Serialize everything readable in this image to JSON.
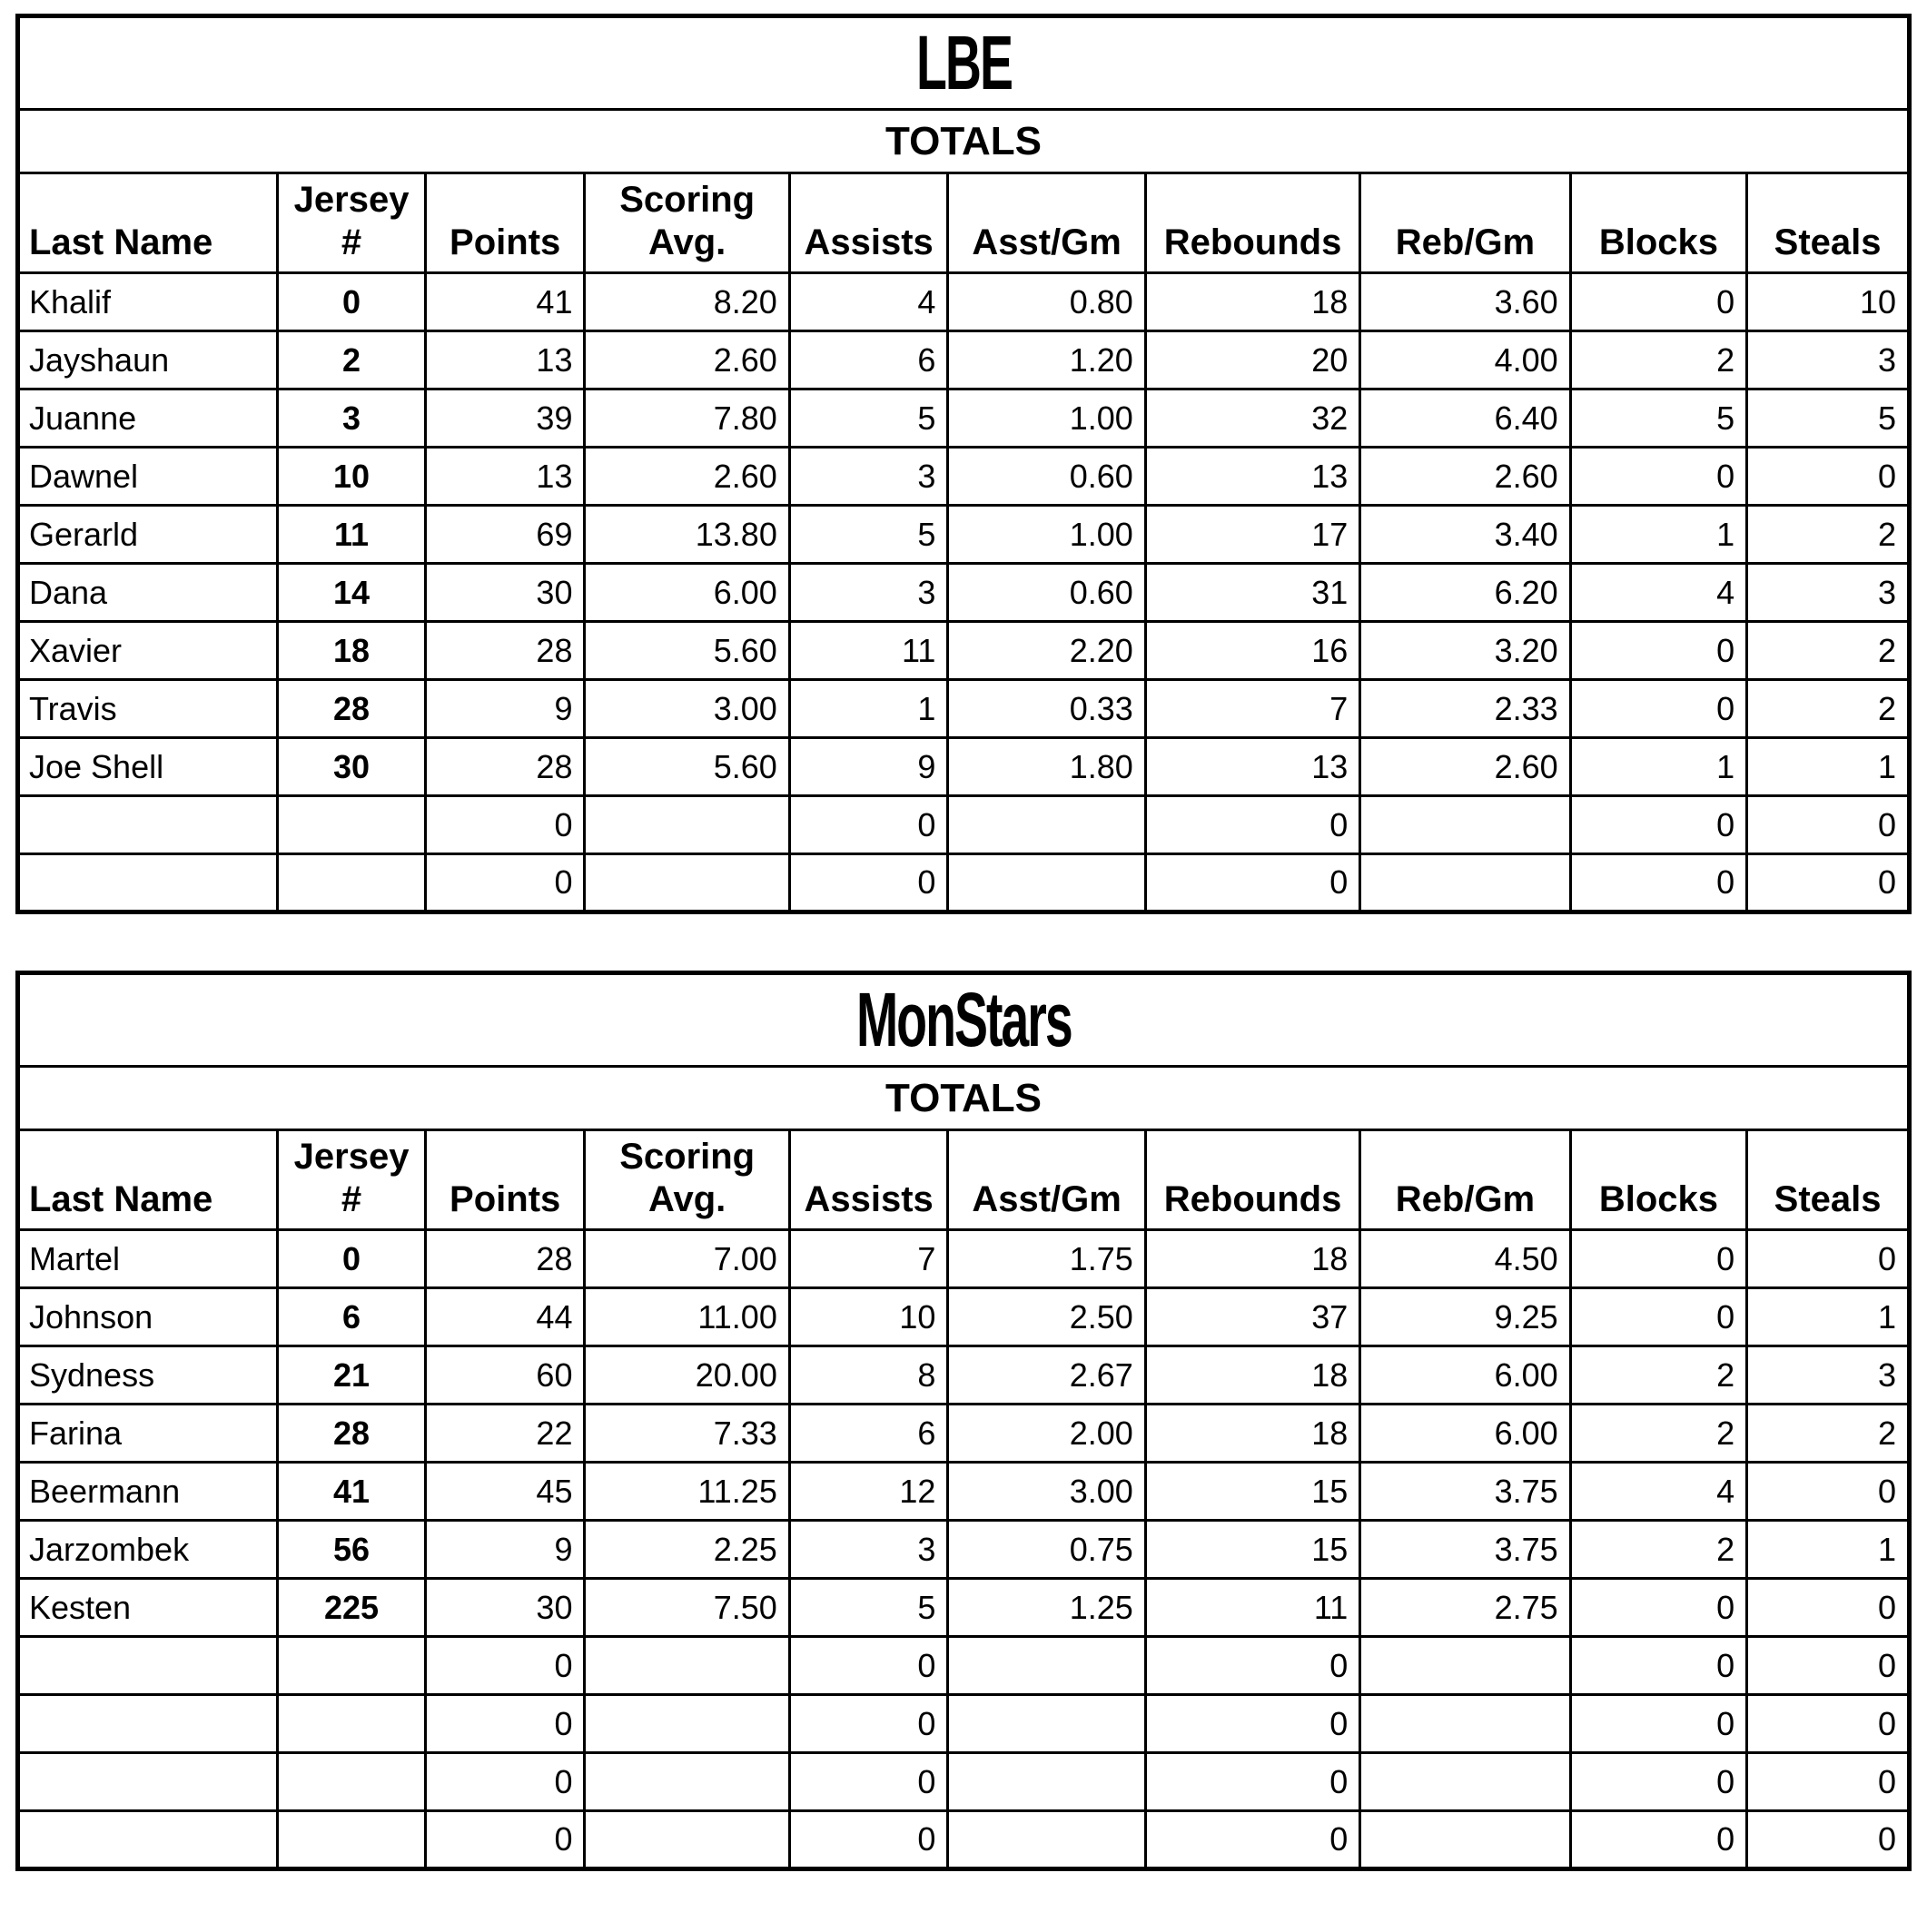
{
  "page": {
    "background_color": "#ffffff",
    "text_color": "#000000",
    "border_color": "#000000"
  },
  "columns": [
    "Last Name",
    "Jersey\n#",
    "Points",
    "Scoring\nAvg.",
    "Assists",
    "Asst/Gm",
    "Rebounds",
    "Reb/Gm",
    "Blocks",
    "Steals"
  ],
  "teams": [
    {
      "title": "LBE",
      "totals_label": "TOTALS",
      "rows": [
        {
          "last_name": "Khalif",
          "jersey": "0",
          "points": "41",
          "scoring_avg": "8.20",
          "assists": "4",
          "asst_gm": "0.80",
          "rebounds": "18",
          "reb_gm": "3.60",
          "blocks": "0",
          "steals": "10"
        },
        {
          "last_name": "Jayshaun",
          "jersey": "2",
          "points": "13",
          "scoring_avg": "2.60",
          "assists": "6",
          "asst_gm": "1.20",
          "rebounds": "20",
          "reb_gm": "4.00",
          "blocks": "2",
          "steals": "3"
        },
        {
          "last_name": "Juanne",
          "jersey": "3",
          "points": "39",
          "scoring_avg": "7.80",
          "assists": "5",
          "asst_gm": "1.00",
          "rebounds": "32",
          "reb_gm": "6.40",
          "blocks": "5",
          "steals": "5"
        },
        {
          "last_name": "Dawnel",
          "jersey": "10",
          "points": "13",
          "scoring_avg": "2.60",
          "assists": "3",
          "asst_gm": "0.60",
          "rebounds": "13",
          "reb_gm": "2.60",
          "blocks": "0",
          "steals": "0"
        },
        {
          "last_name": "Gerarld",
          "jersey": "11",
          "points": "69",
          "scoring_avg": "13.80",
          "assists": "5",
          "asst_gm": "1.00",
          "rebounds": "17",
          "reb_gm": "3.40",
          "blocks": "1",
          "steals": "2"
        },
        {
          "last_name": "Dana",
          "jersey": "14",
          "points": "30",
          "scoring_avg": "6.00",
          "assists": "3",
          "asst_gm": "0.60",
          "rebounds": "31",
          "reb_gm": "6.20",
          "blocks": "4",
          "steals": "3"
        },
        {
          "last_name": "Xavier",
          "jersey": "18",
          "points": "28",
          "scoring_avg": "5.60",
          "assists": "11",
          "asst_gm": "2.20",
          "rebounds": "16",
          "reb_gm": "3.20",
          "blocks": "0",
          "steals": "2"
        },
        {
          "last_name": "Travis",
          "jersey": "28",
          "points": "9",
          "scoring_avg": "3.00",
          "assists": "1",
          "asst_gm": "0.33",
          "rebounds": "7",
          "reb_gm": "2.33",
          "blocks": "0",
          "steals": "2"
        },
        {
          "last_name": "Joe Shell",
          "jersey": "30",
          "points": "28",
          "scoring_avg": "5.60",
          "assists": "9",
          "asst_gm": "1.80",
          "rebounds": "13",
          "reb_gm": "2.60",
          "blocks": "1",
          "steals": "1"
        },
        {
          "last_name": "",
          "jersey": "",
          "points": "0",
          "scoring_avg": "",
          "assists": "0",
          "asst_gm": "",
          "rebounds": "0",
          "reb_gm": "",
          "blocks": "0",
          "steals": "0"
        },
        {
          "last_name": "",
          "jersey": "",
          "points": "0",
          "scoring_avg": "",
          "assists": "0",
          "asst_gm": "",
          "rebounds": "0",
          "reb_gm": "",
          "blocks": "0",
          "steals": "0"
        }
      ]
    },
    {
      "title": "MonStars",
      "totals_label": "TOTALS",
      "rows": [
        {
          "last_name": "Martel",
          "jersey": "0",
          "points": "28",
          "scoring_avg": "7.00",
          "assists": "7",
          "asst_gm": "1.75",
          "rebounds": "18",
          "reb_gm": "4.50",
          "blocks": "0",
          "steals": "0"
        },
        {
          "last_name": "Johnson",
          "jersey": "6",
          "points": "44",
          "scoring_avg": "11.00",
          "assists": "10",
          "asst_gm": "2.50",
          "rebounds": "37",
          "reb_gm": "9.25",
          "blocks": "0",
          "steals": "1"
        },
        {
          "last_name": "Sydness",
          "jersey": "21",
          "points": "60",
          "scoring_avg": "20.00",
          "assists": "8",
          "asst_gm": "2.67",
          "rebounds": "18",
          "reb_gm": "6.00",
          "blocks": "2",
          "steals": "3"
        },
        {
          "last_name": "Farina",
          "jersey": "28",
          "points": "22",
          "scoring_avg": "7.33",
          "assists": "6",
          "asst_gm": "2.00",
          "rebounds": "18",
          "reb_gm": "6.00",
          "blocks": "2",
          "steals": "2"
        },
        {
          "last_name": "Beermann",
          "jersey": "41",
          "points": "45",
          "scoring_avg": "11.25",
          "assists": "12",
          "asst_gm": "3.00",
          "rebounds": "15",
          "reb_gm": "3.75",
          "blocks": "4",
          "steals": "0"
        },
        {
          "last_name": "Jarzombek",
          "jersey": "56",
          "points": "9",
          "scoring_avg": "2.25",
          "assists": "3",
          "asst_gm": "0.75",
          "rebounds": "15",
          "reb_gm": "3.75",
          "blocks": "2",
          "steals": "1"
        },
        {
          "last_name": "Kesten",
          "jersey": "225",
          "points": "30",
          "scoring_avg": "7.50",
          "assists": "5",
          "asst_gm": "1.25",
          "rebounds": "11",
          "reb_gm": "2.75",
          "blocks": "0",
          "steals": "0"
        },
        {
          "last_name": "",
          "jersey": "",
          "points": "0",
          "scoring_avg": "",
          "assists": "0",
          "asst_gm": "",
          "rebounds": "0",
          "reb_gm": "",
          "blocks": "0",
          "steals": "0"
        },
        {
          "last_name": "",
          "jersey": "",
          "points": "0",
          "scoring_avg": "",
          "assists": "0",
          "asst_gm": "",
          "rebounds": "0",
          "reb_gm": "",
          "blocks": "0",
          "steals": "0"
        },
        {
          "last_name": "",
          "jersey": "",
          "points": "0",
          "scoring_avg": "",
          "assists": "0",
          "asst_gm": "",
          "rebounds": "0",
          "reb_gm": "",
          "blocks": "0",
          "steals": "0"
        },
        {
          "last_name": "",
          "jersey": "",
          "points": "0",
          "scoring_avg": "",
          "assists": "0",
          "asst_gm": "",
          "rebounds": "0",
          "reb_gm": "",
          "blocks": "0",
          "steals": "0"
        }
      ]
    }
  ]
}
